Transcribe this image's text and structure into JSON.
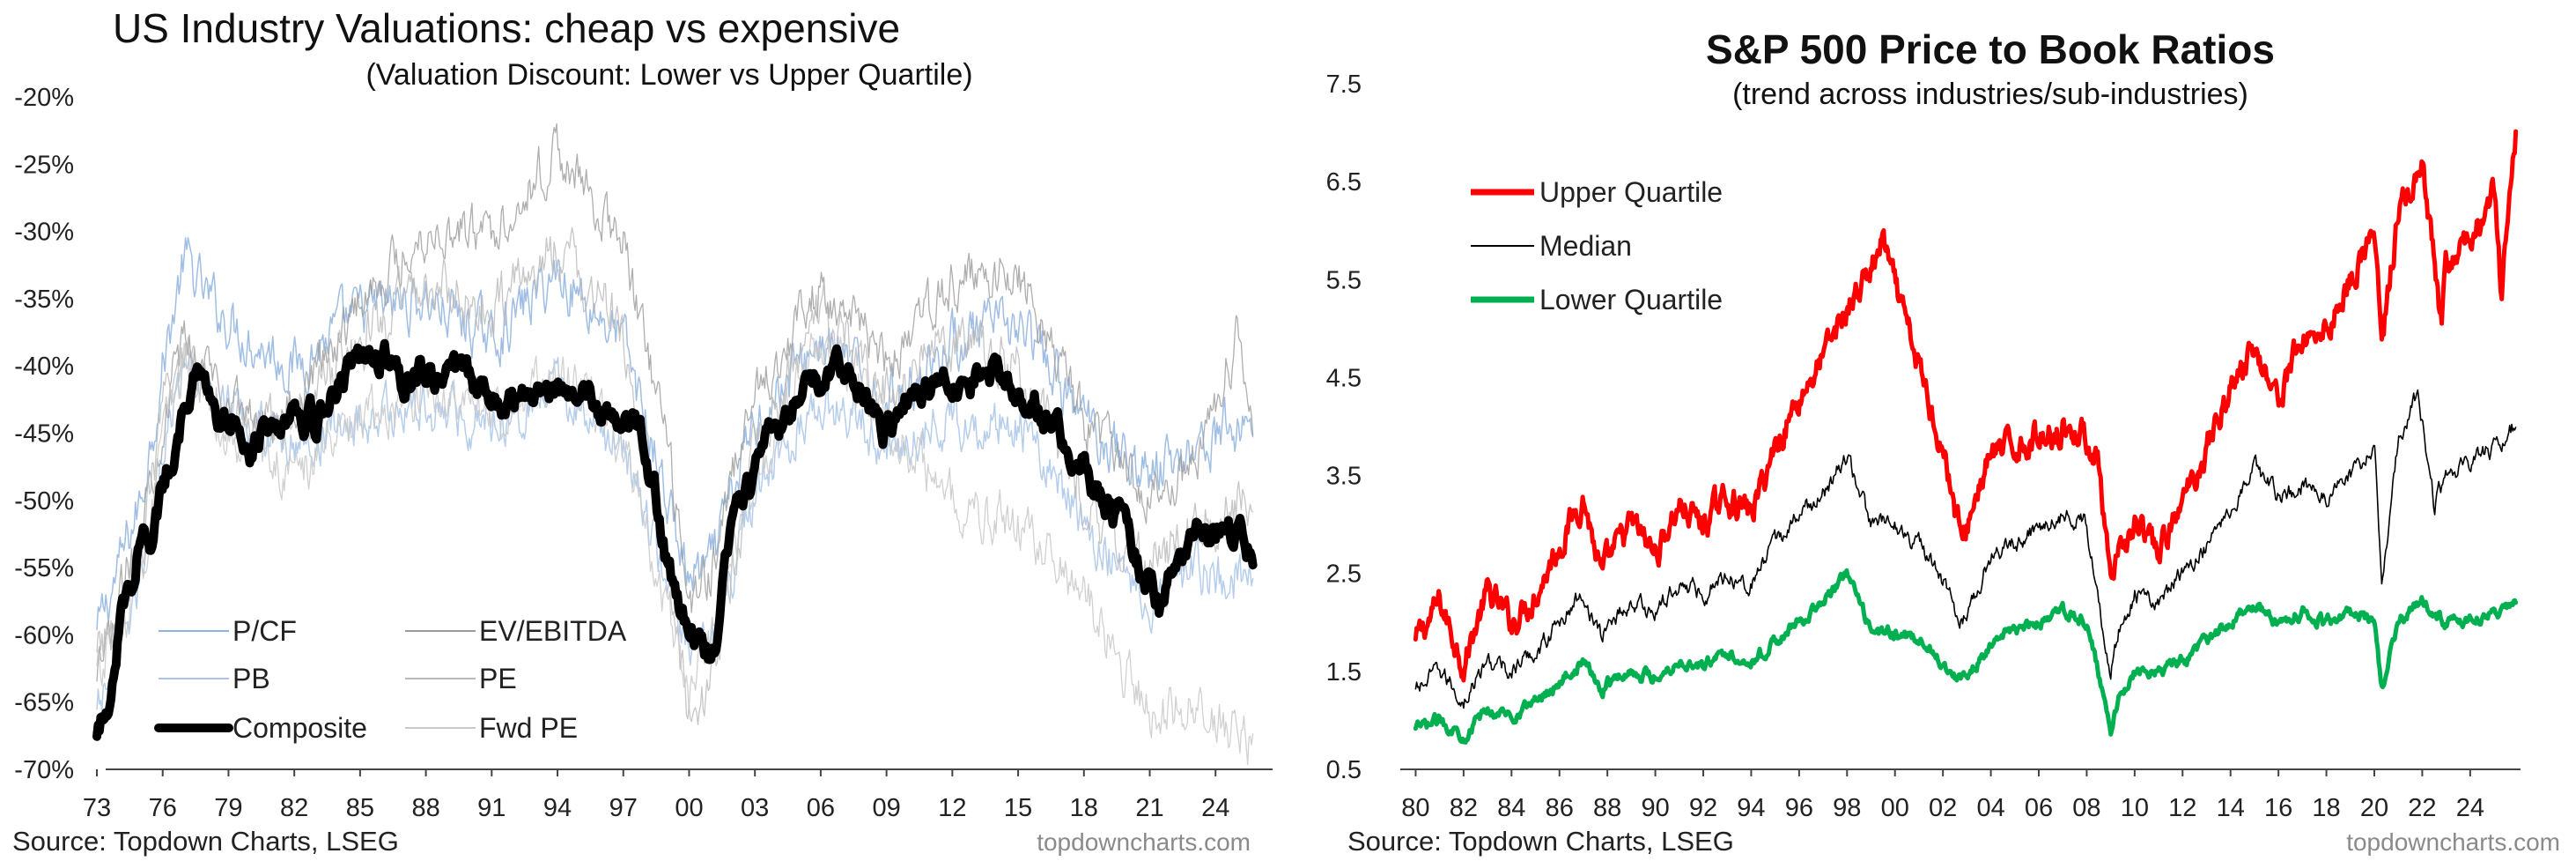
{
  "left": {
    "title": "US Industry Valuations: cheap vs expensive",
    "subtitle": "(Valuation Discount: Lower vs Upper Quartile)",
    "source": "Source: Topdown Charts, LSEG",
    "watermark": "topdowncharts.com",
    "legend": {
      "pcf": "P/CF",
      "evebitda": "EV/EBITDA",
      "pb": "PB",
      "pe": "PE",
      "composite": "Composite",
      "fwdpe": "Fwd PE"
    }
  },
  "right": {
    "title": "S&P 500 Price to Book Ratios",
    "subtitle": "(trend across industries/sub-industries)",
    "source": "Source: Topdown Charts, LSEG",
    "watermark": "topdowncharts.com",
    "legend": {
      "upper": "Upper Quartile",
      "median": "Median",
      "lower": "Lower Quartile"
    }
  },
  "colors": {
    "composite": "#000000",
    "pcf": "#8fb3de",
    "pb": "#a9c6e8",
    "evebitda": "#9a9a9a",
    "pe": "#b8b8b8",
    "fwdpe": "#c9c9c9",
    "upper": "#ff0000",
    "median": "#000000",
    "lower": "#00b050"
  },
  "chart_data": [
    {
      "type": "line",
      "title": "US Industry Valuations: cheap vs expensive",
      "subtitle": "(Valuation Discount: Lower vs Upper Quartile)",
      "xlabel": "",
      "ylabel": "",
      "xlim": [
        1973,
        2026.4
      ],
      "ylim": [
        -70,
        -20
      ],
      "x_ticks": [
        1973,
        1976,
        1979,
        1982,
        1985,
        1988,
        1991,
        1994,
        1997,
        2000,
        2003,
        2006,
        2009,
        2012,
        2015,
        2018,
        2021,
        2024
      ],
      "x_tick_labels": [
        "73",
        "76",
        "79",
        "82",
        "85",
        "88",
        "91",
        "94",
        "97",
        "00",
        "03",
        "06",
        "09",
        "12",
        "15",
        "18",
        "21",
        "24"
      ],
      "y_ticks": [
        -20,
        -25,
        -30,
        -35,
        -40,
        -45,
        -50,
        -55,
        -60,
        -65,
        -70
      ],
      "y_tick_labels": [
        "-20%",
        "-25%",
        "-30%",
        "-35%",
        "-40%",
        "-45%",
        "-50%",
        "-55%",
        "-60%",
        "-65%",
        "-70%"
      ],
      "legend_position": "bottom-left",
      "grid": false,
      "series": [
        {
          "name": "Composite",
          "x": [
            1973,
            1973.5,
            1974,
            1974.5,
            1975,
            1975.5,
            1976,
            1976.5,
            1977,
            1977.5,
            1978,
            1978.5,
            1979,
            1979.5,
            1980,
            1981,
            1982,
            1983,
            1984,
            1985,
            1986,
            1987,
            1988,
            1989,
            1990,
            1991,
            1992,
            1993,
            1994,
            1995,
            1996,
            1997,
            1998,
            1998.5,
            1999,
            1999.5,
            2000,
            2000.5,
            2001,
            2001.5,
            2002,
            2003,
            2004,
            2005,
            2006,
            2007,
            2008,
            2009,
            2010,
            2011,
            2012,
            2013,
            2014,
            2015,
            2016,
            2017,
            2018,
            2019,
            2020,
            2021,
            2021.5,
            2022,
            2023,
            2024,
            2025,
            2025.7
          ],
          "values": [
            -68,
            -65,
            -59,
            -56,
            -52,
            -54,
            -49,
            -46,
            -43,
            -41,
            -42,
            -45,
            -44,
            -43,
            -46,
            -44,
            -43,
            -44,
            -41,
            -40,
            -39,
            -41,
            -40,
            -41,
            -41,
            -42,
            -43,
            -42,
            -41,
            -42,
            -43,
            -44,
            -46,
            -50,
            -55,
            -58,
            -59,
            -61,
            -62,
            -57,
            -52,
            -48,
            -45,
            -42,
            -41,
            -40,
            -42,
            -45,
            -42,
            -42,
            -41,
            -41,
            -40,
            -42,
            -43,
            -45,
            -48,
            -50,
            -53,
            -56,
            -58,
            -55,
            -53,
            -52,
            -52,
            -54
          ]
        },
        {
          "name": "P/CF",
          "x": [
            1973,
            1975,
            1976,
            1977,
            1978,
            1980,
            1982,
            1985,
            1988,
            1991,
            1994,
            1997,
            1999,
            2000,
            2001,
            2003,
            2006,
            2009,
            2012,
            2015,
            2018,
            2021,
            2023,
            2025.7
          ],
          "values": [
            -60,
            -50,
            -40,
            -32,
            -35,
            -38,
            -40,
            -36,
            -35,
            -38,
            -33,
            -38,
            -50,
            -56,
            -55,
            -44,
            -38,
            -43,
            -38,
            -37,
            -44,
            -48,
            -46,
            -44
          ]
        },
        {
          "name": "PB",
          "x": [
            1973,
            1975,
            1976,
            1977,
            1978,
            1980,
            1982,
            1985,
            1988,
            1991,
            1994,
            1997,
            1999,
            2000,
            2001,
            2003,
            2006,
            2009,
            2012,
            2015,
            2018,
            2021,
            2023,
            2025.7
          ],
          "values": [
            -66,
            -56,
            -46,
            -40,
            -42,
            -44,
            -46,
            -44,
            -43,
            -44,
            -42,
            -46,
            -56,
            -62,
            -60,
            -50,
            -42,
            -46,
            -44,
            -44,
            -52,
            -57,
            -55,
            -56
          ]
        },
        {
          "name": "EV/EBITDA",
          "x": [
            1973,
            1975,
            1976,
            1977,
            1978,
            1980,
            1982,
            1985,
            1988,
            1991,
            1994,
            1997,
            1999,
            2000,
            2001,
            2003,
            2006,
            2009,
            2012,
            2015,
            2018,
            2021,
            2023,
            2025,
            2025.7
          ],
          "values": [
            -64,
            -52,
            -44,
            -38,
            -40,
            -44,
            -43,
            -35,
            -30,
            -30,
            -24,
            -31,
            -46,
            -58,
            -55,
            -42,
            -34,
            -40,
            -34,
            -33,
            -44,
            -50,
            -47,
            -38,
            -43
          ]
        },
        {
          "name": "PE",
          "x": [
            1973,
            1975,
            1976,
            1977,
            1978,
            1980,
            1982,
            1985,
            1988,
            1991,
            1994,
            1997,
            1999,
            2000,
            2001,
            2003,
            2006,
            2009,
            2012,
            2015,
            2018,
            2021,
            2023,
            2025.7
          ],
          "values": [
            -62,
            -54,
            -44,
            -39,
            -41,
            -45,
            -44,
            -38,
            -34,
            -36,
            -31,
            -38,
            -55,
            -66,
            -64,
            -46,
            -36,
            -42,
            -38,
            -40,
            -50,
            -55,
            -52,
            -50
          ]
        },
        {
          "name": "Fwd PE",
          "x": [
            1973,
            1975,
            1976,
            1977,
            1978,
            1980,
            1982,
            1985,
            1988,
            1991,
            1994,
            1997,
            1999,
            2000,
            2001,
            2003,
            2006,
            2009,
            2012,
            2015,
            2018,
            2021,
            2023,
            2025.7
          ],
          "values": [
            -63,
            -56,
            -46,
            -40,
            -43,
            -46,
            -48,
            -44,
            -42,
            -44,
            -40,
            -46,
            -58,
            -64,
            -60,
            -48,
            -38,
            -44,
            -50,
            -52,
            -57,
            -66,
            -65,
            -68
          ]
        }
      ]
    },
    {
      "type": "line",
      "title": "S&P 500 Price to Book Ratios",
      "subtitle": "(trend across industries/sub-industries)",
      "xlabel": "",
      "ylabel": "",
      "xlim": [
        1979.8,
        2026.1
      ],
      "ylim": [
        0.5,
        7.5
      ],
      "x_ticks": [
        1980,
        1982,
        1984,
        1986,
        1988,
        1990,
        1992,
        1994,
        1996,
        1998,
        2000,
        2002,
        2004,
        2006,
        2008,
        2010,
        2012,
        2014,
        2016,
        2018,
        2020,
        2022,
        2024
      ],
      "x_tick_labels": [
        "80",
        "82",
        "84",
        "86",
        "88",
        "90",
        "92",
        "94",
        "96",
        "98",
        "00",
        "02",
        "04",
        "06",
        "08",
        "10",
        "12",
        "14",
        "16",
        "18",
        "20",
        "22",
        "24"
      ],
      "y_ticks": [
        0.5,
        1.5,
        2.5,
        3.5,
        4.5,
        5.5,
        6.5,
        7.5
      ],
      "y_tick_labels": [
        "0.5",
        "1.5",
        "2.5",
        "3.5",
        "4.5",
        "5.5",
        "6.5",
        "7.5"
      ],
      "legend_position": "top-left",
      "grid": false,
      "series": [
        {
          "name": "Upper Quartile",
          "x": [
            1980,
            1981,
            1982,
            1983,
            1984,
            1985,
            1986,
            1987,
            1987.8,
            1988,
            1989,
            1990,
            1991,
            1992,
            1993,
            1994,
            1995,
            1996,
            1997,
            1998,
            1999,
            1999.5,
            2000,
            2001,
            2002,
            2002.8,
            2003.5,
            2004,
            2005,
            2006,
            2007,
            2008,
            2008.5,
            2009,
            2009.3,
            2010,
            2011,
            2012,
            2013,
            2014,
            2015,
            2016,
            2017,
            2018,
            2019,
            2020,
            2020.3,
            2021,
            2022,
            2022.8,
            2023,
            2024,
            2025,
            2025.3,
            2025.9
          ],
          "values": [
            1.8,
            2.2,
            1.6,
            2.3,
            2.0,
            2.3,
            2.8,
            3.3,
            2.4,
            2.6,
            3.0,
            2.7,
            3.2,
            3.0,
            3.3,
            3.1,
            3.8,
            4.3,
            4.7,
            5.2,
            5.6,
            5.9,
            5.4,
            4.6,
            3.8,
            2.8,
            3.4,
            3.7,
            3.8,
            3.9,
            4.0,
            3.9,
            3.6,
            2.3,
            2.6,
            3.0,
            2.7,
            3.2,
            3.8,
            4.4,
            4.8,
            4.3,
            4.9,
            5.0,
            5.5,
            6.0,
            4.8,
            6.2,
            6.6,
            5.0,
            5.6,
            5.9,
            6.4,
            5.3,
            7.0
          ]
        },
        {
          "name": "Median",
          "x": [
            1980,
            1981,
            1982,
            1983,
            1984,
            1985,
            1986,
            1987,
            1987.8,
            1988,
            1989,
            1990,
            1991,
            1992,
            1993,
            1994,
            1995,
            1996,
            1997,
            1998,
            1999,
            2000,
            2001,
            2002,
            2002.8,
            2003.5,
            2004,
            2005,
            2006,
            2007,
            2008,
            2009,
            2009.3,
            2010,
            2011,
            2012,
            2013,
            2014,
            2015,
            2016,
            2017,
            2018,
            2019,
            2020,
            2020.3,
            2021,
            2021.8,
            2022.5,
            2023,
            2024,
            2025,
            2025.9
          ],
          "values": [
            1.3,
            1.5,
            1.2,
            1.6,
            1.5,
            1.7,
            2.0,
            2.3,
            1.8,
            2.0,
            2.2,
            2.1,
            2.4,
            2.3,
            2.5,
            2.4,
            2.8,
            3.1,
            3.3,
            3.7,
            3.0,
            3.0,
            2.8,
            2.4,
            2.0,
            2.4,
            2.7,
            2.8,
            3.0,
            3.1,
            3.0,
            1.5,
            1.9,
            2.3,
            2.2,
            2.5,
            2.8,
            3.2,
            3.6,
            3.3,
            3.4,
            3.3,
            3.5,
            3.8,
            2.4,
            3.9,
            4.3,
            3.2,
            3.5,
            3.6,
            3.8,
            4.0
          ]
        },
        {
          "name": "Lower Quartile",
          "x": [
            1980,
            1981,
            1982,
            1983,
            1984,
            1985,
            1986,
            1987,
            1987.8,
            1988,
            1989,
            1990,
            1991,
            1992,
            1993,
            1994,
            1995,
            1996,
            1997,
            1998,
            1999,
            2000,
            2001,
            2002,
            2002.8,
            2003.5,
            2004,
            2005,
            2006,
            2007,
            2008,
            2009,
            2009.3,
            2010,
            2011,
            2012,
            2013,
            2014,
            2015,
            2016,
            2017,
            2018,
            2019,
            2020,
            2020.3,
            2021,
            2022,
            2023,
            2024,
            2025,
            2025.9
          ],
          "values": [
            0.9,
            1.0,
            0.85,
            1.1,
            1.05,
            1.2,
            1.4,
            1.6,
            1.3,
            1.4,
            1.5,
            1.45,
            1.6,
            1.55,
            1.7,
            1.6,
            1.8,
            2.0,
            2.2,
            2.5,
            1.9,
            1.9,
            1.8,
            1.6,
            1.4,
            1.6,
            1.8,
            1.9,
            2.0,
            2.1,
            2.0,
            0.9,
            1.2,
            1.5,
            1.5,
            1.6,
            1.8,
            2.0,
            2.2,
            2.0,
            2.1,
            2.0,
            2.1,
            2.0,
            1.3,
            2.0,
            2.2,
            2.0,
            2.0,
            2.1,
            2.2
          ]
        }
      ]
    }
  ]
}
